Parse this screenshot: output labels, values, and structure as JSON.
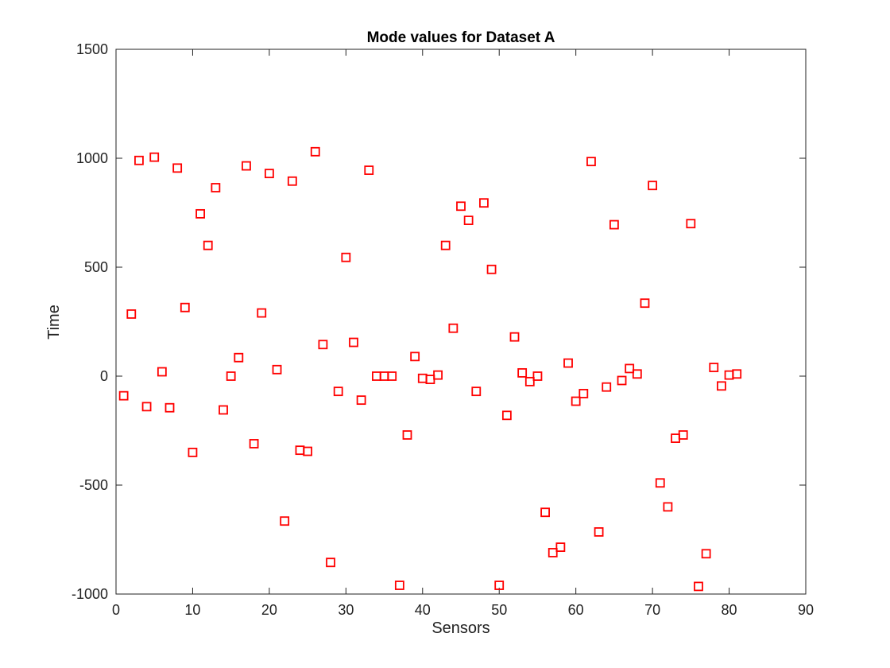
{
  "chart_data": {
    "type": "scatter",
    "title": "Mode values for Dataset A",
    "xlabel": "Sensors",
    "ylabel": "Time",
    "xlim": [
      0,
      90
    ],
    "ylim": [
      -1000,
      1500
    ],
    "xticks": [
      0,
      10,
      20,
      30,
      40,
      50,
      60,
      70,
      80,
      90
    ],
    "yticks": [
      -1000,
      -500,
      0,
      500,
      1000,
      1500
    ],
    "grid": false,
    "marker": "square",
    "marker_color": "#ff0000",
    "series": [
      {
        "x": [
          1,
          2,
          3,
          4,
          5,
          6,
          7,
          8,
          9,
          10,
          11,
          12,
          13,
          14,
          15,
          16,
          17,
          18,
          19,
          20,
          21,
          22,
          23,
          24,
          25,
          26,
          27,
          28,
          29,
          30,
          31,
          32,
          33,
          34,
          35,
          36,
          37,
          38,
          39,
          40,
          41,
          42,
          43,
          44,
          45,
          46,
          47,
          48,
          49,
          50,
          51,
          52,
          53,
          54,
          55,
          56,
          57,
          58,
          59,
          60,
          61,
          62,
          63,
          64,
          65,
          66,
          67,
          68,
          69,
          70,
          71,
          72,
          73,
          74,
          75,
          76,
          77,
          78,
          79,
          80,
          81
        ],
        "y": [
          -90,
          285,
          990,
          -140,
          1005,
          20,
          -145,
          955,
          315,
          -350,
          745,
          600,
          865,
          -155,
          0,
          85,
          965,
          -310,
          290,
          930,
          30,
          -665,
          895,
          -340,
          -345,
          1030,
          145,
          -855,
          -70,
          545,
          155,
          -110,
          945,
          0,
          0,
          0,
          -960,
          -270,
          90,
          -10,
          -15,
          5,
          600,
          220,
          780,
          715,
          -70,
          795,
          490,
          -960,
          -180,
          180,
          15,
          -25,
          0,
          -625,
          -810,
          -785,
          60,
          -115,
          -80,
          985,
          -715,
          -50,
          695,
          -20,
          35,
          10,
          335,
          875,
          -490,
          -600,
          -285,
          -270,
          700,
          -965,
          -815,
          40,
          -45,
          5,
          10
        ]
      }
    ]
  }
}
